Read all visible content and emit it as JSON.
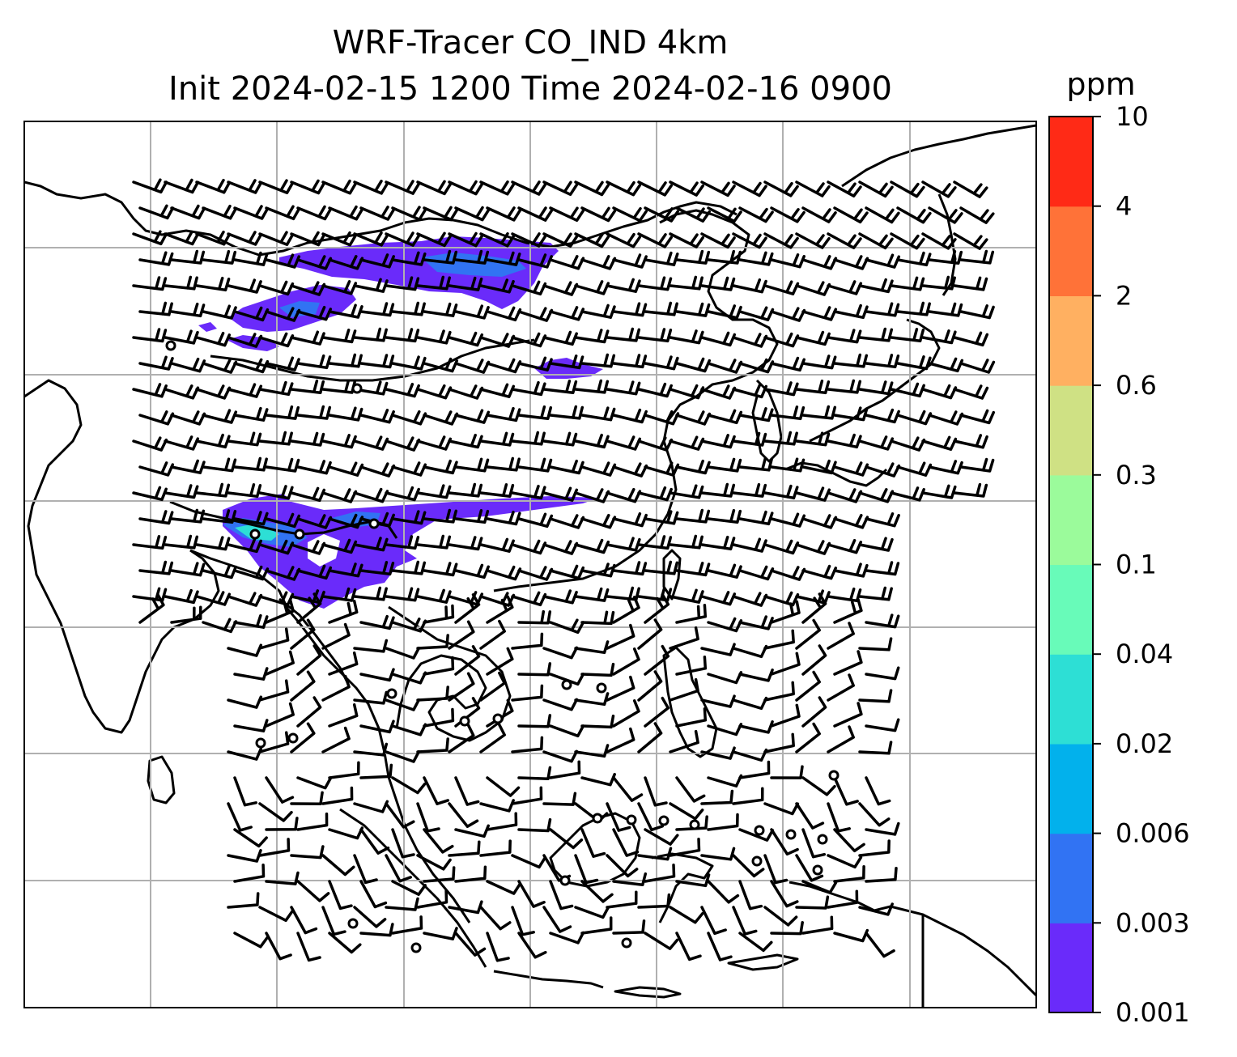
{
  "title": {
    "line1": "WRF-Tracer CO_IND 4km",
    "line2": "Init 2024-02-15 1200 Time 2024-02-16 0900"
  },
  "colorbar": {
    "unit": "ppm",
    "levels": [
      "0.001",
      "0.003",
      "0.006",
      "0.02",
      "0.04",
      "0.1",
      "0.3",
      "0.6",
      "2",
      "4",
      "10"
    ],
    "colors": [
      "#6a2bfa",
      "#3173f3",
      "#02b1ec",
      "#2ddfd5",
      "#68fbb9",
      "#9bfb9b",
      "#cfe184",
      "#ffb061",
      "#ff7238",
      "#ff2a16"
    ]
  },
  "map": {
    "gridlines": true,
    "plume_colors": {
      "lowest": "#6a2bfa",
      "low": "#3173f3",
      "mid": "#2ddfd5"
    },
    "coast_color": "#000000",
    "grid_color": "#b0b0b0"
  }
}
